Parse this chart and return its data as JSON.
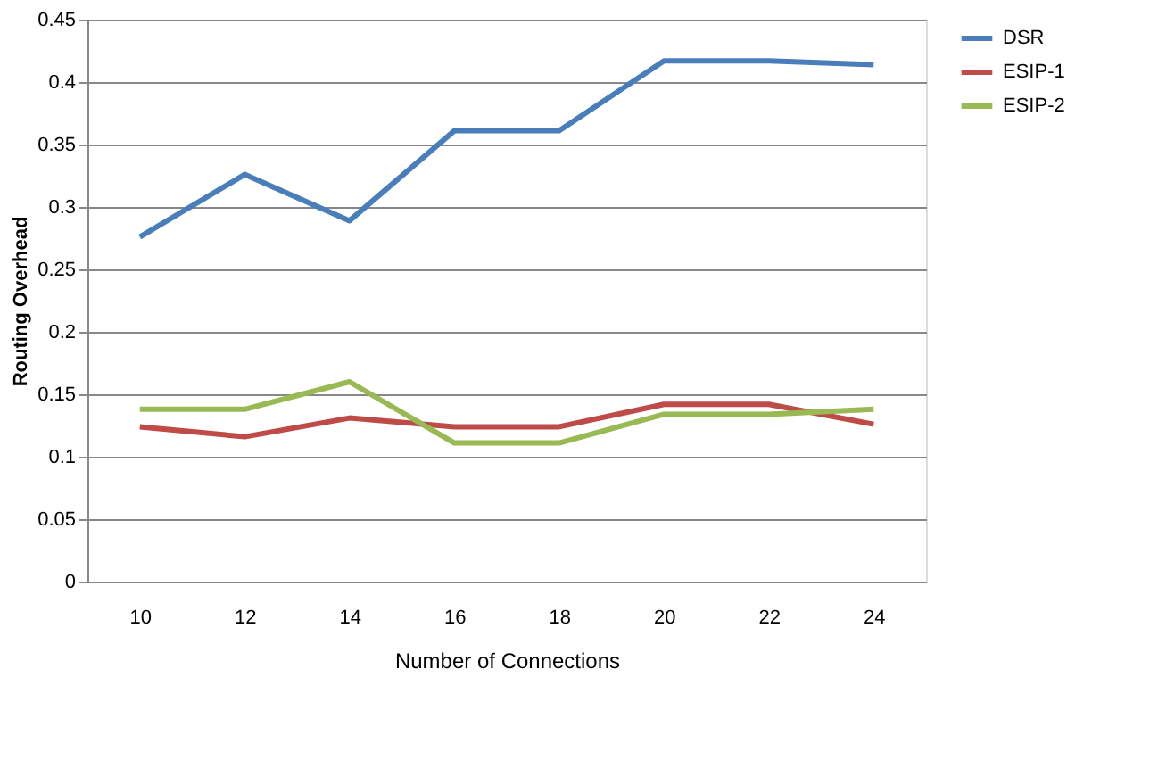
{
  "chart_data": {
    "type": "line",
    "xlabel": "Number of Connections",
    "ylabel": "Routing Overhead",
    "categories": [
      "10",
      "12",
      "14",
      "16",
      "18",
      "20",
      "22",
      "24"
    ],
    "series": [
      {
        "name": "DSR",
        "color": "#4a7ebb",
        "values": [
          0.276,
          0.326,
          0.289,
          0.361,
          0.361,
          0.417,
          0.417,
          0.414
        ]
      },
      {
        "name": "ESIP-1",
        "color": "#be4b48",
        "values": [
          0.124,
          0.116,
          0.131,
          0.124,
          0.124,
          0.142,
          0.142,
          0.126
        ]
      },
      {
        "name": "ESIP-2",
        "color": "#98b954",
        "values": [
          0.138,
          0.138,
          0.16,
          0.111,
          0.111,
          0.134,
          0.134,
          0.138
        ]
      }
    ],
    "ylim": [
      0,
      0.45
    ],
    "yticks": [
      0,
      0.05,
      0.1,
      0.15,
      0.2,
      0.25,
      0.3,
      0.35,
      0.4,
      0.45
    ],
    "grid": "y",
    "legend": "right",
    "marker": "none",
    "line_style": "solid"
  }
}
